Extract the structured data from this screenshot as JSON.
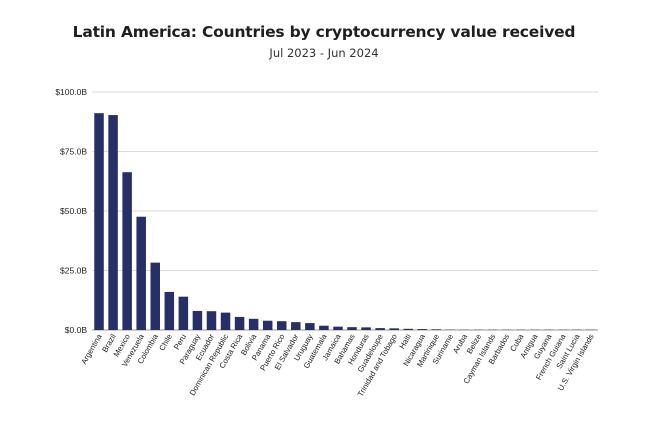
{
  "chart_data": {
    "type": "bar",
    "title": "Latin America: Countries by cryptocurrency value received",
    "subtitle": "Jul 2023 - Jun 2024",
    "xlabel": "",
    "ylabel": "",
    "ylim": [
      0,
      100
    ],
    "yticks": [
      {
        "value": 0,
        "label": "$0.0B"
      },
      {
        "value": 25,
        "label": "$25.0B"
      },
      {
        "value": 50,
        "label": "$50.0B"
      },
      {
        "value": 75,
        "label": "$75.0B"
      },
      {
        "value": 100,
        "label": "$100.0B"
      }
    ],
    "grid": true,
    "bar_color": "#262f66",
    "categories": [
      "Argentina",
      "Brazil",
      "Mexico",
      "Venezuela",
      "Colombia",
      "Chile",
      "Peru",
      "Paraguay",
      "Ecuador",
      "Dominican Republic",
      "Costa Rica",
      "Bolivia",
      "Panama",
      "Puerto Rico",
      "El Salvador",
      "Uruguay",
      "Guatemala",
      "Jamaica",
      "Bahamas",
      "Honduras",
      "Guadeloupe",
      "Trinidad and Tobago",
      "Haiti",
      "Nicaragua",
      "Martinique",
      "Suriname",
      "Aruba",
      "Belize",
      "Cayman Islands",
      "Barbados",
      "Cuba",
      "Antigua",
      "Guyana",
      "French Guiana",
      "Saint Lucia",
      "U.S. Virgin Islands"
    ],
    "values": [
      91.1,
      90.3,
      66.3,
      47.6,
      28.3,
      16.0,
      14.0,
      8.0,
      7.9,
      7.3,
      5.5,
      4.7,
      3.9,
      3.7,
      3.3,
      2.9,
      1.8,
      1.4,
      1.2,
      1.1,
      0.8,
      0.7,
      0.5,
      0.4,
      0.3,
      0.15,
      0.12,
      0.1,
      0.1,
      0.08,
      0.07,
      0.06,
      0.05,
      0.05,
      0.04,
      0.03
    ]
  }
}
